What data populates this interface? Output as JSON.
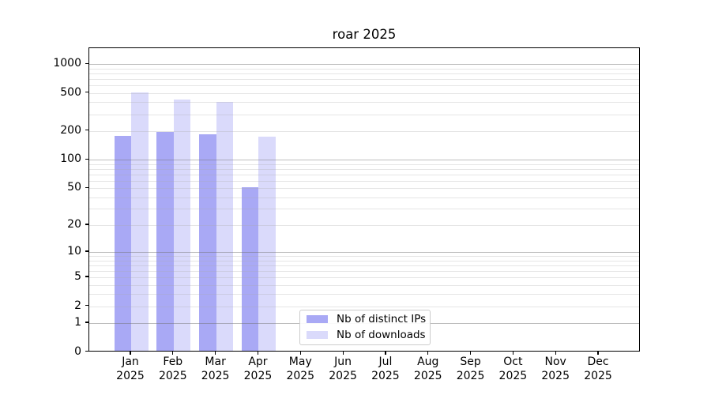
{
  "chart_data": {
    "type": "bar",
    "title": "roar 2025",
    "categories": [
      "Jan",
      "Feb",
      "Mar",
      "Apr",
      "May",
      "Jun",
      "Jul",
      "Aug",
      "Sep",
      "Oct",
      "Nov",
      "Dec"
    ],
    "x_tick_year": "2025",
    "series": [
      {
        "name": "Nb of distinct IPs",
        "color": "#a9a9f5",
        "values": [
          170,
          190,
          177,
          49,
          0,
          0,
          0,
          0,
          0,
          0,
          0,
          0
        ]
      },
      {
        "name": "Nb of downloads",
        "color": "#dadafb",
        "values": [
          490,
          410,
          390,
          167,
          0,
          0,
          0,
          0,
          0,
          0,
          0,
          0
        ]
      }
    ],
    "y_ticks": [
      0,
      1,
      2,
      5,
      10,
      20,
      50,
      100,
      200,
      500,
      1000
    ],
    "y_major_gridlines": [
      1,
      10,
      100,
      1000
    ],
    "y_minor_gridline_decades": [
      1,
      10,
      100
    ],
    "ylim": [
      0,
      1480
    ],
    "y_scale": "log10(1+v)",
    "xlabel": "",
    "ylabel": "",
    "grid": "horizontal",
    "legend_position": "lower-center-inside",
    "colors": {
      "spine": "#000000",
      "major_grid": "#c3c3c3",
      "minor_grid": "#e7e7e7",
      "background": "#ffffff"
    }
  }
}
